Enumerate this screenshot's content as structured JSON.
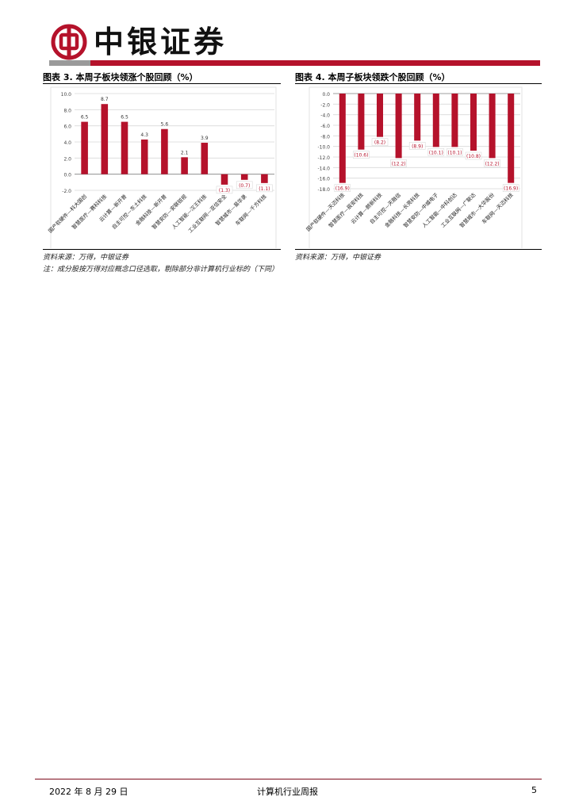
{
  "header": {
    "brand": "中银证券"
  },
  "charts": [
    {
      "caption": "图表 3. 本周子板块领涨个股回顾（%）",
      "source": "资料来源：万得，中银证券",
      "note": "注：成分股按万得对应概念口径选取，剔除部分非计算机行业标的（下同）"
    },
    {
      "caption": "图表 4. 本周子板块领跌个股回顾（%）",
      "source": "资料来源：万得，中银证券"
    }
  ],
  "chart_data": [
    {
      "type": "bar",
      "categories": [
        "国产软硬件—科大国创",
        "智慧医疗—赛科科技",
        "云计算—新开普",
        "自主可控—东土科技",
        "金融科技—新开普",
        "智慧安防—安联锐视",
        "人工智能—汉王科技",
        "工业互联网—亚信安全",
        "智慧城市—易华录",
        "车联网—千方科技"
      ],
      "values": [
        6.5,
        8.7,
        6.5,
        4.3,
        5.6,
        2.1,
        3.9,
        -1.3,
        -0.7,
        -1.1
      ],
      "value_labels": [
        "6.5",
        "8.7",
        "6.5",
        "4.3",
        "5.6",
        "2.1",
        "3.9",
        "(1.3)",
        "(0.7)",
        "(1.1)"
      ],
      "y_ticks": [
        "10.0",
        "8.0",
        "6.0",
        "4.0",
        "2.0",
        "0.0",
        "-2.0"
      ],
      "ylim": [
        -2,
        10
      ],
      "grid": true,
      "colors": {
        "bar": "#b5122b",
        "grid": "#d9d9d9"
      }
    },
    {
      "type": "bar",
      "categories": [
        "国产软硬件—天迈科技",
        "智慧医疗—辰安科技",
        "云计算—朗新科技",
        "自主可控—天融信",
        "金融科技—长亮科技",
        "智慧安防—中威电子",
        "人工智能—中科创达",
        "工业互联网—广联达",
        "智慧城市—大华股份",
        "车联网—天迈科技"
      ],
      "values": [
        -16.9,
        -10.6,
        -8.2,
        -12.2,
        -8.9,
        -10.1,
        -10.1,
        -10.8,
        -12.2,
        -16.9
      ],
      "value_labels": [
        "(16.9)",
        "(10.6)",
        "(8.2)",
        "(12.2)",
        "(8.9)",
        "(10.1)",
        "(10.1)",
        "(10.8)",
        "(12.2)",
        "(16.9)"
      ],
      "y_ticks": [
        "0.0",
        "-2.0",
        "-4.0",
        "-6.0",
        "-8.0",
        "-10.0",
        "-12.0",
        "-14.0",
        "-16.0",
        "-18.0"
      ],
      "ylim": [
        -18,
        0
      ],
      "grid": true,
      "colors": {
        "bar": "#b5122b",
        "grid": "#d9d9d9"
      }
    }
  ],
  "footer": {
    "date": "2022 年 8 月 29 日",
    "title": "计算机行业周报",
    "page": "5"
  }
}
